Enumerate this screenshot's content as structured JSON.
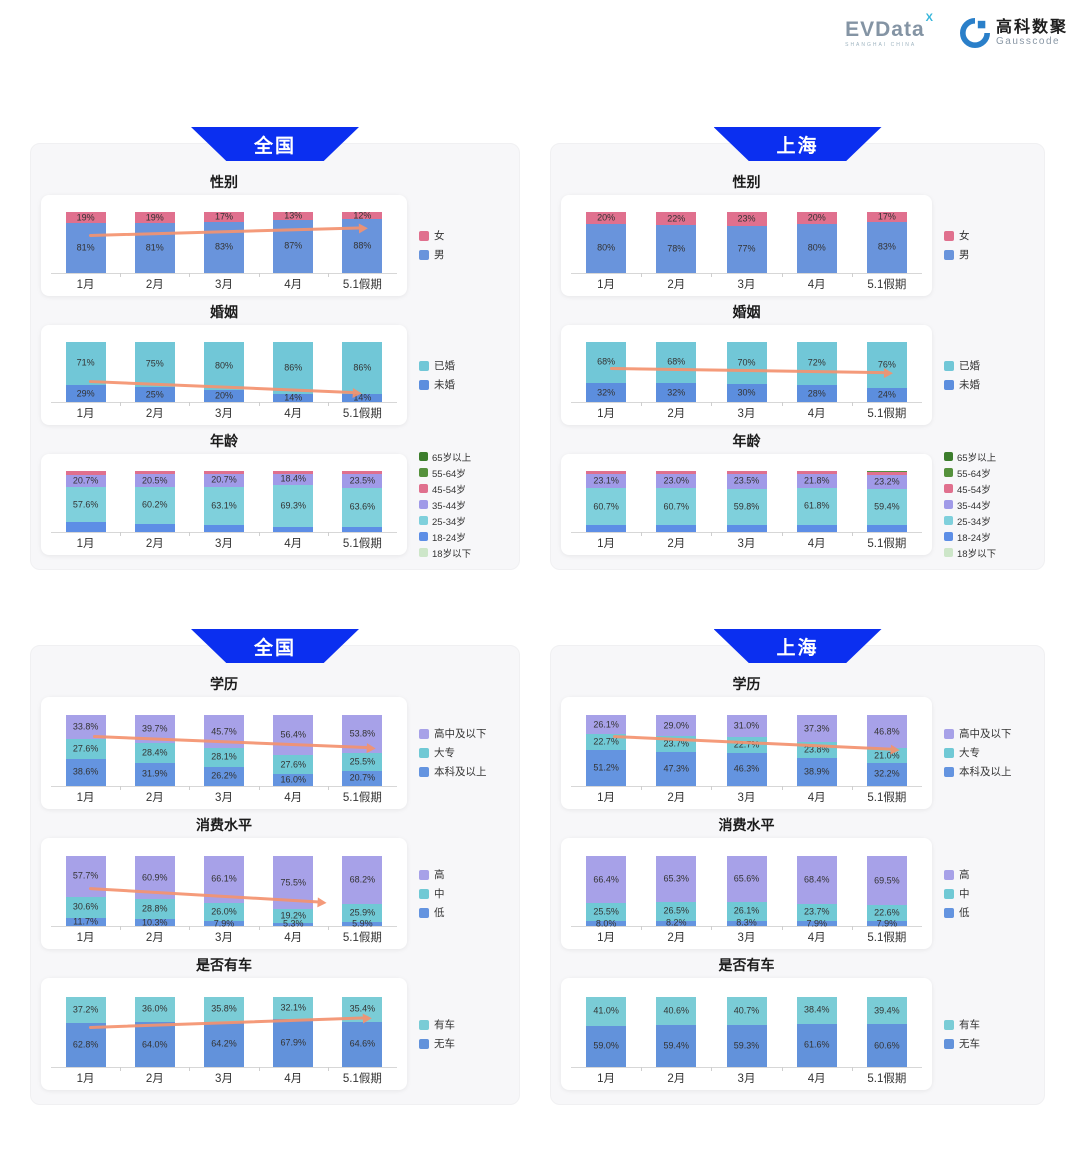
{
  "logos": {
    "evdata": {
      "name": "EVData",
      "sup": "X",
      "tagline": "SHANGHAI CHINA"
    },
    "gausscode": {
      "cn": "高科数聚",
      "en": "Gausscode"
    }
  },
  "colors": {
    "banner_blue": "#0b2ff0",
    "arrow_orange": "#f4926f",
    "panel_gray": "#f7f7f9",
    "card_white": "#ffffff"
  },
  "sections": [
    {
      "region": "全国",
      "charts": [
        0,
        1,
        2
      ]
    },
    {
      "region": "上海",
      "charts": [
        3,
        4,
        5
      ]
    },
    {
      "region": "全国",
      "charts": [
        6,
        7,
        8
      ]
    },
    {
      "region": "上海",
      "charts": [
        9,
        10,
        11
      ]
    }
  ],
  "chart_data": [
    {
      "type": "bar",
      "stacked": true,
      "region": "全国",
      "title": "性别",
      "unit": "%",
      "decimals": 0,
      "categories": [
        "1月",
        "2月",
        "3月",
        "4月",
        "5.1假期"
      ],
      "series": [
        {
          "name": "男",
          "color": "#6994dc",
          "values": [
            81,
            81,
            83,
            87,
            88
          ],
          "show_labels": true
        },
        {
          "name": "女",
          "color": "#e0708e",
          "values": [
            19,
            19,
            17,
            13,
            12
          ],
          "show_labels": true
        }
      ],
      "legend": [
        {
          "label": "女",
          "color": "#e0708e"
        },
        {
          "label": "男",
          "color": "#6994dc"
        }
      ],
      "arrow": {
        "x1": 0.11,
        "y1": 0.47,
        "x2": 0.92,
        "y2": 0.36
      }
    },
    {
      "type": "bar",
      "stacked": true,
      "region": "全国",
      "title": "婚姻",
      "unit": "%",
      "decimals": 0,
      "categories": [
        "1月",
        "2月",
        "3月",
        "4月",
        "5.1假期"
      ],
      "series": [
        {
          "name": "未婚",
          "color": "#5c8ede",
          "values": [
            29,
            25,
            20,
            14,
            14
          ],
          "show_labels": true
        },
        {
          "name": "已婚",
          "color": "#71c7d7",
          "values": [
            71,
            75,
            80,
            86,
            86
          ],
          "show_labels": true
        }
      ],
      "legend": [
        {
          "label": "已婚",
          "color": "#71c7d7"
        },
        {
          "label": "未婚",
          "color": "#5c8ede"
        }
      ],
      "arrow": {
        "x1": 0.11,
        "y1": 0.7,
        "x2": 0.9,
        "y2": 0.86
      }
    },
    {
      "type": "bar",
      "stacked": true,
      "region": "全国",
      "title": "年龄",
      "unit": "%",
      "decimals": 1,
      "categories": [
        "1月",
        "2月",
        "3月",
        "4月",
        "5.1假期"
      ],
      "series": [
        {
          "name": "18-24岁",
          "color": "#5d8ee6",
          "values": [
            16.0,
            14.0,
            11.5,
            8.0,
            9.0
          ],
          "show_labels": false,
          "estimated": true
        },
        {
          "name": "25-34岁",
          "color": "#7fd0dc",
          "values": [
            57.6,
            60.2,
            63.1,
            69.3,
            63.6
          ],
          "show_labels": true
        },
        {
          "name": "35-44岁",
          "color": "#a09ae8",
          "values": [
            20.7,
            20.5,
            20.7,
            18.4,
            23.5
          ],
          "show_labels": true
        },
        {
          "name": "45-54岁",
          "color": "#e0708e",
          "values": [
            5.7,
            5.3,
            4.7,
            4.3,
            3.9
          ],
          "show_labels": false,
          "estimated": true
        }
      ],
      "legend": [
        {
          "label": "65岁以上",
          "color": "#3c7d2c"
        },
        {
          "label": "55-64岁",
          "color": "#55913c"
        },
        {
          "label": "45-54岁",
          "color": "#e0708e"
        },
        {
          "label": "35-44岁",
          "color": "#a09ae8"
        },
        {
          "label": "25-34岁",
          "color": "#7fd0dc"
        },
        {
          "label": "18-24岁",
          "color": "#5d8ee6"
        },
        {
          "label": "18岁以下",
          "color": "#cde6c9"
        }
      ],
      "arrow": null
    },
    {
      "type": "bar",
      "stacked": true,
      "region": "上海",
      "title": "性别",
      "unit": "%",
      "decimals": 0,
      "categories": [
        "1月",
        "2月",
        "3月",
        "4月",
        "5.1假期"
      ],
      "series": [
        {
          "name": "男",
          "color": "#6994dc",
          "values": [
            80,
            78,
            77,
            80,
            83
          ],
          "show_labels": true
        },
        {
          "name": "女",
          "color": "#e0708e",
          "values": [
            20,
            22,
            23,
            20,
            17
          ],
          "show_labels": true
        }
      ],
      "legend": [
        {
          "label": "女",
          "color": "#e0708e"
        },
        {
          "label": "男",
          "color": "#6994dc"
        }
      ],
      "arrow": null
    },
    {
      "type": "bar",
      "stacked": true,
      "region": "上海",
      "title": "婚姻",
      "unit": "%",
      "decimals": 0,
      "categories": [
        "1月",
        "2月",
        "3月",
        "4月",
        "5.1假期"
      ],
      "series": [
        {
          "name": "未婚",
          "color": "#5c8ede",
          "values": [
            32,
            32,
            30,
            28,
            24
          ],
          "show_labels": true
        },
        {
          "name": "已婚",
          "color": "#71c7d7",
          "values": [
            68,
            68,
            70,
            72,
            76
          ],
          "show_labels": true
        }
      ],
      "legend": [
        {
          "label": "已婚",
          "color": "#71c7d7"
        },
        {
          "label": "未婚",
          "color": "#5c8ede"
        }
      ],
      "arrow": {
        "x1": 0.11,
        "y1": 0.52,
        "x2": 0.92,
        "y2": 0.58
      }
    },
    {
      "type": "bar",
      "stacked": true,
      "region": "上海",
      "title": "年龄",
      "unit": "%",
      "decimals": 1,
      "categories": [
        "1月",
        "2月",
        "3月",
        "4月",
        "5.1假期"
      ],
      "series": [
        {
          "name": "18-24岁",
          "color": "#5d8ee6",
          "values": [
            11.0,
            11.3,
            11.7,
            11.4,
            11.5
          ],
          "show_labels": false,
          "estimated": true
        },
        {
          "name": "25-34岁",
          "color": "#7fd0dc",
          "values": [
            60.7,
            60.7,
            59.8,
            61.8,
            59.4
          ],
          "show_labels": true
        },
        {
          "name": "35-44岁",
          "color": "#a09ae8",
          "values": [
            23.1,
            23.0,
            23.5,
            21.8,
            23.2
          ],
          "show_labels": true
        },
        {
          "name": "45-54岁",
          "color": "#e0708e",
          "values": [
            5.2,
            5.0,
            5.0,
            5.0,
            4.4
          ],
          "show_labels": false,
          "estimated": true
        },
        {
          "name": "55-64岁",
          "color": "#55913c",
          "values": [
            0,
            0,
            0,
            0,
            1.5
          ],
          "show_labels": false,
          "estimated": true
        }
      ],
      "legend": [
        {
          "label": "65岁以上",
          "color": "#3c7d2c"
        },
        {
          "label": "55-64岁",
          "color": "#55913c"
        },
        {
          "label": "45-54岁",
          "color": "#e0708e"
        },
        {
          "label": "35-44岁",
          "color": "#a09ae8"
        },
        {
          "label": "25-34岁",
          "color": "#7fd0dc"
        },
        {
          "label": "18-24岁",
          "color": "#5d8ee6"
        },
        {
          "label": "18岁以下",
          "color": "#cde6c9"
        }
      ],
      "arrow": null
    },
    {
      "type": "bar",
      "stacked": true,
      "region": "全国",
      "title": "学历",
      "unit": "%",
      "decimals": 1,
      "categories": [
        "1月",
        "2月",
        "3月",
        "4月",
        "5.1假期"
      ],
      "series": [
        {
          "name": "本科及以上",
          "color": "#6494e0",
          "values": [
            38.6,
            31.9,
            26.2,
            16.0,
            20.7
          ],
          "show_labels": true
        },
        {
          "name": "大专",
          "color": "#70c9d5",
          "values": [
            27.6,
            28.4,
            28.1,
            27.6,
            25.5
          ],
          "show_labels": true
        },
        {
          "name": "高中及以下",
          "color": "#a7a1e8",
          "values": [
            33.8,
            39.7,
            45.7,
            56.4,
            53.8
          ],
          "show_labels": true
        }
      ],
      "legend": [
        {
          "label": "高中及以下",
          "color": "#a7a1e8"
        },
        {
          "label": "大专",
          "color": "#70c9d5"
        },
        {
          "label": "本科及以上",
          "color": "#6494e0"
        }
      ],
      "arrow": {
        "x1": 0.12,
        "y1": 0.4,
        "x2": 0.94,
        "y2": 0.54
      }
    },
    {
      "type": "bar",
      "stacked": true,
      "region": "全国",
      "title": "消费水平",
      "unit": "%",
      "decimals": 1,
      "categories": [
        "1月",
        "2月",
        "3月",
        "4月",
        "5.1假期"
      ],
      "series": [
        {
          "name": "低",
          "color": "#6494e0",
          "values": [
            11.7,
            10.3,
            7.9,
            5.3,
            5.9
          ],
          "show_labels": true
        },
        {
          "name": "中",
          "color": "#70c9d5",
          "values": [
            30.6,
            28.8,
            26.0,
            19.2,
            25.9
          ],
          "show_labels": true
        },
        {
          "name": "高",
          "color": "#a7a1e8",
          "values": [
            57.7,
            60.9,
            66.1,
            75.5,
            68.2
          ],
          "show_labels": true
        }
      ],
      "legend": [
        {
          "label": "高",
          "color": "#a7a1e8"
        },
        {
          "label": "中",
          "color": "#70c9d5"
        },
        {
          "label": "低",
          "color": "#6494e0"
        }
      ],
      "arrow": {
        "x1": 0.11,
        "y1": 0.53,
        "x2": 0.8,
        "y2": 0.7
      }
    },
    {
      "type": "bar",
      "stacked": true,
      "region": "全国",
      "title": "是否有车",
      "unit": "%",
      "decimals": 1,
      "categories": [
        "1月",
        "2月",
        "3月",
        "4月",
        "5.1假期"
      ],
      "series": [
        {
          "name": "无车",
          "color": "#6292db",
          "values": [
            62.8,
            64.0,
            64.2,
            67.9,
            64.6
          ],
          "show_labels": true
        },
        {
          "name": "有车",
          "color": "#7accd6",
          "values": [
            37.2,
            36.0,
            35.8,
            32.1,
            35.4
          ],
          "show_labels": true
        }
      ],
      "legend": [
        {
          "label": "有车",
          "color": "#7accd6"
        },
        {
          "label": "无车",
          "color": "#6292db"
        }
      ],
      "arrow": {
        "x1": 0.11,
        "y1": 0.52,
        "x2": 0.93,
        "y2": 0.4
      }
    },
    {
      "type": "bar",
      "stacked": true,
      "region": "上海",
      "title": "学历",
      "unit": "%",
      "decimals": 1,
      "categories": [
        "1月",
        "2月",
        "3月",
        "4月",
        "5.1假期"
      ],
      "series": [
        {
          "name": "本科及以上",
          "color": "#6494e0",
          "values": [
            51.2,
            47.3,
            46.3,
            38.9,
            32.2
          ],
          "show_labels": true
        },
        {
          "name": "大专",
          "color": "#70c9d5",
          "values": [
            22.7,
            23.7,
            22.7,
            23.8,
            21.0
          ],
          "show_labels": true
        },
        {
          "name": "高中及以下",
          "color": "#a7a1e8",
          "values": [
            26.1,
            29.0,
            31.0,
            37.3,
            46.8
          ],
          "show_labels": true
        }
      ],
      "legend": [
        {
          "label": "高中及以下",
          "color": "#a7a1e8"
        },
        {
          "label": "大专",
          "color": "#70c9d5"
        },
        {
          "label": "本科及以上",
          "color": "#6494e0"
        }
      ],
      "arrow": {
        "x1": 0.12,
        "y1": 0.4,
        "x2": 0.94,
        "y2": 0.56
      }
    },
    {
      "type": "bar",
      "stacked": true,
      "region": "上海",
      "title": "消费水平",
      "unit": "%",
      "decimals": 1,
      "categories": [
        "1月",
        "2月",
        "3月",
        "4月",
        "5.1假期"
      ],
      "series": [
        {
          "name": "低",
          "color": "#6494e0",
          "values": [
            8.0,
            8.2,
            8.3,
            7.9,
            7.9
          ],
          "show_labels": true
        },
        {
          "name": "中",
          "color": "#70c9d5",
          "values": [
            25.5,
            26.5,
            26.1,
            23.7,
            22.6
          ],
          "show_labels": true
        },
        {
          "name": "高",
          "color": "#a7a1e8",
          "values": [
            66.4,
            65.3,
            65.6,
            68.4,
            69.5
          ],
          "show_labels": true
        }
      ],
      "legend": [
        {
          "label": "高",
          "color": "#a7a1e8"
        },
        {
          "label": "中",
          "color": "#70c9d5"
        },
        {
          "label": "低",
          "color": "#6494e0"
        }
      ],
      "arrow": null
    },
    {
      "type": "bar",
      "stacked": true,
      "region": "上海",
      "title": "是否有车",
      "unit": "%",
      "decimals": 1,
      "categories": [
        "1月",
        "2月",
        "3月",
        "4月",
        "5.1假期"
      ],
      "series": [
        {
          "name": "无车",
          "color": "#6292db",
          "values": [
            59.0,
            59.4,
            59.3,
            61.6,
            60.6
          ],
          "show_labels": true
        },
        {
          "name": "有车",
          "color": "#7accd6",
          "values": [
            41.0,
            40.6,
            40.7,
            38.4,
            39.4
          ],
          "show_labels": true
        }
      ],
      "legend": [
        {
          "label": "有车",
          "color": "#7accd6"
        },
        {
          "label": "无车",
          "color": "#6292db"
        }
      ],
      "arrow": null
    }
  ]
}
